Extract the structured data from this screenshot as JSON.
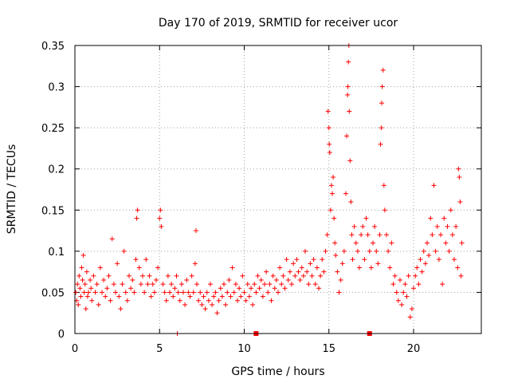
{
  "chart_data": {
    "type": "scatter",
    "title": "Day 170 of 2019, SRMTID for receiver ucor",
    "xlabel": "GPS time / hours",
    "ylabel": "SRMTID / TECUs",
    "xlim": [
      0,
      24
    ],
    "ylim": [
      0,
      0.35
    ],
    "xticks": [
      0,
      5,
      10,
      15,
      20
    ],
    "yticks": [
      0,
      0.05,
      0.1,
      0.15,
      0.2,
      0.25,
      0.3,
      0.35
    ],
    "xtick_labels": [
      "0",
      "5",
      "10",
      "15",
      "20"
    ],
    "ytick_labels": [
      "0",
      "0.05",
      "0.1",
      "0.15",
      "0.2",
      "0.25",
      "0.3",
      "0.35"
    ],
    "grid": true,
    "marker": "+",
    "series": [
      {
        "name": "SRMTID",
        "color": "#ff0000",
        "points": [
          [
            0.05,
            0.05
          ],
          [
            0.1,
            0.04
          ],
          [
            0.15,
            0.06
          ],
          [
            0.2,
            0.035
          ],
          [
            0.25,
            0.07
          ],
          [
            0.3,
            0.055
          ],
          [
            0.35,
            0.045
          ],
          [
            0.4,
            0.08
          ],
          [
            0.45,
            0.065
          ],
          [
            0.5,
            0.095
          ],
          [
            0.55,
            0.05
          ],
          [
            0.6,
            0.06
          ],
          [
            0.65,
            0.03
          ],
          [
            0.7,
            0.075
          ],
          [
            0.75,
            0.045
          ],
          [
            0.8,
            0.05
          ],
          [
            0.9,
            0.065
          ],
          [
            0.95,
            0.055
          ],
          [
            1.0,
            0.04
          ],
          [
            1.1,
            0.07
          ],
          [
            1.2,
            0.05
          ],
          [
            1.3,
            0.06
          ],
          [
            1.4,
            0.035
          ],
          [
            1.5,
            0.08
          ],
          [
            1.6,
            0.05
          ],
          [
            1.7,
            0.065
          ],
          [
            1.8,
            0.045
          ],
          [
            1.9,
            0.055
          ],
          [
            2.0,
            0.07
          ],
          [
            2.1,
            0.04
          ],
          [
            2.2,
            0.115
          ],
          [
            2.3,
            0.06
          ],
          [
            2.4,
            0.05
          ],
          [
            2.5,
            0.085
          ],
          [
            2.6,
            0.045
          ],
          [
            2.7,
            0.03
          ],
          [
            2.8,
            0.06
          ],
          [
            2.9,
            0.1
          ],
          [
            3.0,
            0.05
          ],
          [
            3.1,
            0.04
          ],
          [
            3.2,
            0.07
          ],
          [
            3.3,
            0.055
          ],
          [
            3.4,
            0.065
          ],
          [
            3.5,
            0.05
          ],
          [
            3.6,
            0.09
          ],
          [
            3.65,
            0.14
          ],
          [
            3.7,
            0.15
          ],
          [
            3.8,
            0.08
          ],
          [
            3.9,
            0.06
          ],
          [
            4.0,
            0.07
          ],
          [
            4.1,
            0.05
          ],
          [
            4.2,
            0.09
          ],
          [
            4.3,
            0.06
          ],
          [
            4.4,
            0.07
          ],
          [
            4.5,
            0.045
          ],
          [
            4.6,
            0.06
          ],
          [
            4.7,
            0.05
          ],
          [
            4.8,
            0.065
          ],
          [
            4.9,
            0.08
          ],
          [
            5.0,
            0.14
          ],
          [
            5.05,
            0.15
          ],
          [
            5.1,
            0.13
          ],
          [
            5.2,
            0.06
          ],
          [
            5.3,
            0.05
          ],
          [
            5.4,
            0.04
          ],
          [
            5.5,
            0.07
          ],
          [
            5.6,
            0.05
          ],
          [
            5.7,
            0.06
          ],
          [
            5.8,
            0.045
          ],
          [
            5.9,
            0.055
          ],
          [
            6.0,
            0.07
          ],
          [
            6.05,
            0.0
          ],
          [
            6.1,
            0.05
          ],
          [
            6.2,
            0.04
          ],
          [
            6.3,
            0.06
          ],
          [
            6.4,
            0.05
          ],
          [
            6.5,
            0.035
          ],
          [
            6.6,
            0.065
          ],
          [
            6.7,
            0.05
          ],
          [
            6.8,
            0.045
          ],
          [
            6.9,
            0.07
          ],
          [
            7.0,
            0.05
          ],
          [
            7.1,
            0.085
          ],
          [
            7.15,
            0.125
          ],
          [
            7.2,
            0.06
          ],
          [
            7.3,
            0.04
          ],
          [
            7.4,
            0.05
          ],
          [
            7.5,
            0.035
          ],
          [
            7.6,
            0.045
          ],
          [
            7.7,
            0.03
          ],
          [
            7.8,
            0.05
          ],
          [
            7.9,
            0.04
          ],
          [
            8.0,
            0.06
          ],
          [
            8.1,
            0.035
          ],
          [
            8.2,
            0.045
          ],
          [
            8.3,
            0.05
          ],
          [
            8.4,
            0.025
          ],
          [
            8.5,
            0.04
          ],
          [
            8.6,
            0.055
          ],
          [
            8.7,
            0.045
          ],
          [
            8.8,
            0.06
          ],
          [
            8.9,
            0.035
          ],
          [
            9.0,
            0.05
          ],
          [
            9.1,
            0.065
          ],
          [
            9.2,
            0.045
          ],
          [
            9.3,
            0.08
          ],
          [
            9.4,
            0.05
          ],
          [
            9.5,
            0.06
          ],
          [
            9.6,
            0.04
          ],
          [
            9.7,
            0.055
          ],
          [
            9.8,
            0.045
          ],
          [
            9.9,
            0.07
          ],
          [
            10.0,
            0.05
          ],
          [
            10.1,
            0.04
          ],
          [
            10.2,
            0.06
          ],
          [
            10.3,
            0.045
          ],
          [
            10.4,
            0.055
          ],
          [
            10.5,
            0.035
          ],
          [
            10.6,
            0.06
          ],
          [
            10.7,
            0.05
          ],
          [
            10.8,
            0.07
          ],
          [
            10.9,
            0.055
          ],
          [
            11.0,
            0.065
          ],
          [
            11.1,
            0.045
          ],
          [
            11.2,
            0.06
          ],
          [
            11.3,
            0.075
          ],
          [
            11.4,
            0.05
          ],
          [
            11.5,
            0.06
          ],
          [
            11.6,
            0.04
          ],
          [
            11.7,
            0.07
          ],
          [
            11.8,
            0.055
          ],
          [
            11.9,
            0.065
          ],
          [
            12.0,
            0.05
          ],
          [
            12.1,
            0.08
          ],
          [
            12.2,
            0.06
          ],
          [
            12.3,
            0.07
          ],
          [
            12.4,
            0.055
          ],
          [
            12.5,
            0.09
          ],
          [
            12.6,
            0.065
          ],
          [
            12.7,
            0.075
          ],
          [
            12.8,
            0.06
          ],
          [
            12.9,
            0.085
          ],
          [
            13.0,
            0.07
          ],
          [
            13.1,
            0.09
          ],
          [
            13.2,
            0.075
          ],
          [
            13.3,
            0.065
          ],
          [
            13.4,
            0.08
          ],
          [
            13.5,
            0.07
          ],
          [
            13.6,
            0.1
          ],
          [
            13.7,
            0.075
          ],
          [
            13.8,
            0.06
          ],
          [
            13.9,
            0.085
          ],
          [
            14.0,
            0.07
          ],
          [
            14.1,
            0.09
          ],
          [
            14.2,
            0.06
          ],
          [
            14.3,
            0.08
          ],
          [
            14.4,
            0.055
          ],
          [
            14.5,
            0.07
          ],
          [
            14.6,
            0.09
          ],
          [
            14.7,
            0.075
          ],
          [
            14.8,
            0.1
          ],
          [
            14.9,
            0.12
          ],
          [
            14.95,
            0.27
          ],
          [
            15.0,
            0.25
          ],
          [
            15.02,
            0.23
          ],
          [
            15.05,
            0.22
          ],
          [
            15.1,
            0.15
          ],
          [
            15.15,
            0.18
          ],
          [
            15.2,
            0.17
          ],
          [
            15.25,
            0.19
          ],
          [
            15.3,
            0.14
          ],
          [
            15.35,
            0.11
          ],
          [
            15.4,
            0.095
          ],
          [
            15.5,
            0.075
          ],
          [
            15.6,
            0.05
          ],
          [
            15.7,
            0.065
          ],
          [
            15.8,
            0.085
          ],
          [
            15.9,
            0.1
          ],
          [
            16.0,
            0.17
          ],
          [
            16.05,
            0.24
          ],
          [
            16.1,
            0.29
          ],
          [
            16.12,
            0.3
          ],
          [
            16.15,
            0.33
          ],
          [
            16.18,
            0.35
          ],
          [
            16.2,
            0.27
          ],
          [
            16.25,
            0.21
          ],
          [
            16.3,
            0.16
          ],
          [
            16.35,
            0.12
          ],
          [
            16.4,
            0.09
          ],
          [
            16.5,
            0.13
          ],
          [
            16.6,
            0.11
          ],
          [
            16.7,
            0.1
          ],
          [
            16.8,
            0.08
          ],
          [
            16.9,
            0.12
          ],
          [
            17.0,
            0.13
          ],
          [
            17.1,
            0.09
          ],
          [
            17.2,
            0.14
          ],
          [
            17.3,
            0.12
          ],
          [
            17.4,
            0.1
          ],
          [
            17.5,
            0.08
          ],
          [
            17.6,
            0.11
          ],
          [
            17.7,
            0.13
          ],
          [
            17.8,
            0.1
          ],
          [
            17.9,
            0.085
          ],
          [
            18.0,
            0.12
          ],
          [
            18.05,
            0.23
          ],
          [
            18.1,
            0.25
          ],
          [
            18.12,
            0.28
          ],
          [
            18.15,
            0.3
          ],
          [
            18.2,
            0.32
          ],
          [
            18.25,
            0.18
          ],
          [
            18.3,
            0.15
          ],
          [
            18.4,
            0.12
          ],
          [
            18.5,
            0.1
          ],
          [
            18.6,
            0.08
          ],
          [
            18.7,
            0.11
          ],
          [
            18.8,
            0.06
          ],
          [
            18.9,
            0.07
          ],
          [
            19.0,
            0.05
          ],
          [
            19.1,
            0.04
          ],
          [
            19.2,
            0.065
          ],
          [
            19.3,
            0.035
          ],
          [
            19.4,
            0.05
          ],
          [
            19.5,
            0.06
          ],
          [
            19.6,
            0.045
          ],
          [
            19.7,
            0.07
          ],
          [
            19.8,
            0.02
          ],
          [
            19.9,
            0.03
          ],
          [
            20.0,
            0.055
          ],
          [
            20.1,
            0.07
          ],
          [
            20.2,
            0.08
          ],
          [
            20.3,
            0.06
          ],
          [
            20.4,
            0.09
          ],
          [
            20.5,
            0.075
          ],
          [
            20.6,
            0.1
          ],
          [
            20.7,
            0.085
          ],
          [
            20.8,
            0.11
          ],
          [
            20.9,
            0.095
          ],
          [
            21.0,
            0.14
          ],
          [
            21.1,
            0.12
          ],
          [
            21.2,
            0.18
          ],
          [
            21.3,
            0.1
          ],
          [
            21.4,
            0.13
          ],
          [
            21.5,
            0.09
          ],
          [
            21.6,
            0.12
          ],
          [
            21.7,
            0.06
          ],
          [
            21.8,
            0.14
          ],
          [
            21.9,
            0.11
          ],
          [
            22.0,
            0.13
          ],
          [
            22.1,
            0.1
          ],
          [
            22.2,
            0.15
          ],
          [
            22.3,
            0.12
          ],
          [
            22.4,
            0.09
          ],
          [
            22.5,
            0.13
          ],
          [
            22.6,
            0.08
          ],
          [
            22.65,
            0.2
          ],
          [
            22.7,
            0.19
          ],
          [
            22.75,
            0.16
          ],
          [
            22.8,
            0.07
          ],
          [
            22.85,
            0.11
          ]
        ]
      }
    ],
    "markers_on_axis": [
      10.7,
      17.4
    ]
  }
}
